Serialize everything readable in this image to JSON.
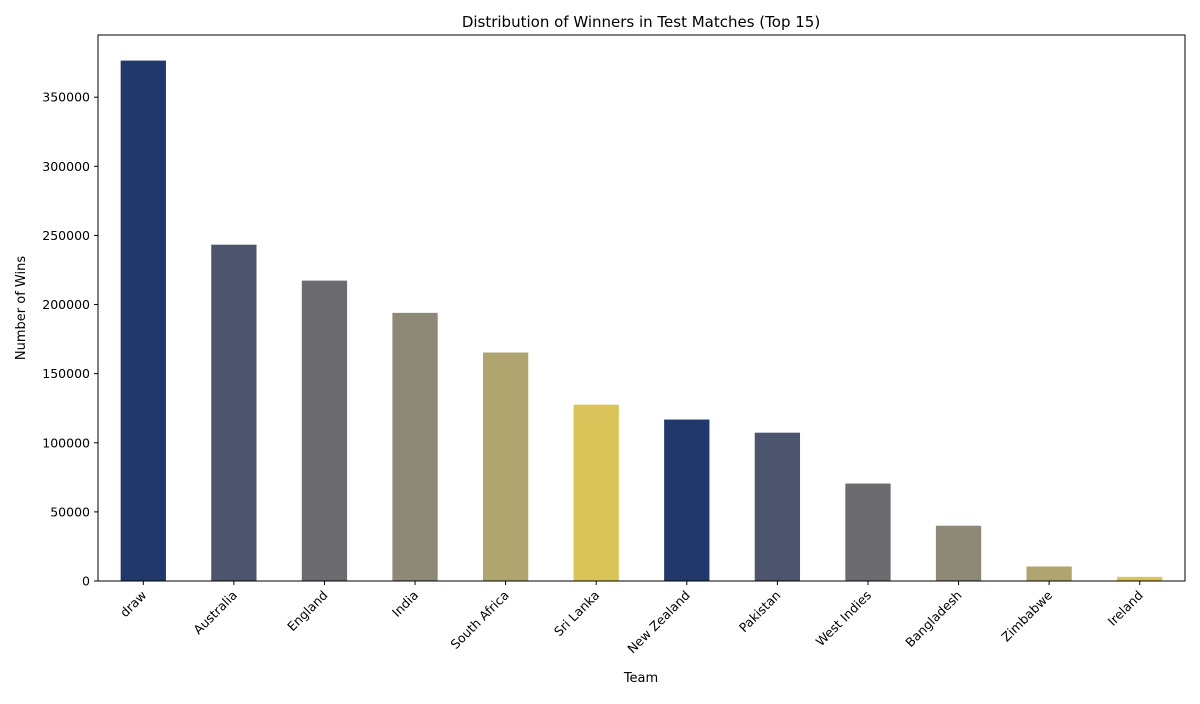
{
  "chart_data": {
    "type": "bar",
    "title": "Distribution of Winners in Test Matches (Top 15)",
    "xlabel": "Team",
    "ylabel": "Number of Wins",
    "categories": [
      "draw",
      "Australia",
      "England",
      "India",
      "South Africa",
      "Sri Lanka",
      "New Zealand",
      "Pakistan",
      "West Indies",
      "Bangladesh",
      "Zimbabwe",
      "Ireland"
    ],
    "values": [
      376500,
      243300,
      217300,
      194000,
      165300,
      127600,
      116800,
      107300,
      70500,
      40000,
      10500,
      3000
    ],
    "ylim": [
      0,
      395000
    ],
    "yticks": [
      0,
      50000,
      100000,
      150000,
      200000,
      250000,
      300000,
      350000
    ],
    "bar_colors": [
      "#20386b",
      "#4c556d",
      "#6c6c70",
      "#8e8877",
      "#b0a56e",
      "#dac45a"
    ],
    "grid": false,
    "legend": "none"
  }
}
